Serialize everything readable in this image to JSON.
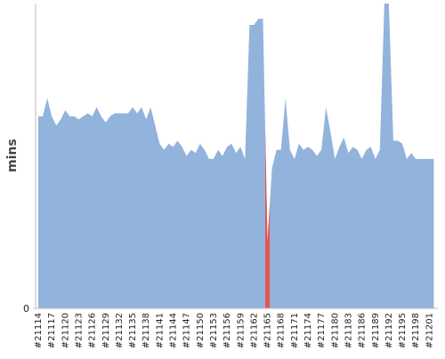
{
  "chart_data": {
    "type": "area",
    "y_label": "mins",
    "categories": [
      "#21114",
      null,
      null,
      "#21117",
      null,
      null,
      "#21120",
      null,
      null,
      "#21123",
      null,
      null,
      "#21126",
      null,
      null,
      "#21129",
      null,
      null,
      "#21132",
      null,
      null,
      "#21135",
      null,
      null,
      "#21138",
      null,
      null,
      "#21141",
      null,
      null,
      "#21144",
      null,
      null,
      "#21147",
      null,
      null,
      "#21150",
      null,
      null,
      "#21153",
      null,
      null,
      "#21156",
      null,
      null,
      "#21159",
      null,
      null,
      "#21162",
      null,
      null,
      "#21165",
      null,
      null,
      "#21168",
      null,
      null,
      "#21171",
      null,
      null,
      "#21174",
      null,
      null,
      "#21177",
      null,
      null,
      "#21180",
      null,
      null,
      "#21183",
      null,
      null,
      "#21186",
      null,
      null,
      "#21189",
      null,
      null,
      "#21192",
      null,
      null,
      "#21195",
      null,
      null,
      "#21198",
      null,
      null,
      "#21201",
      null
    ],
    "values": [
      63,
      63,
      69,
      63,
      60,
      62,
      65,
      63,
      63,
      62,
      63,
      64,
      63,
      66,
      63,
      61,
      63,
      64,
      64,
      64,
      64,
      66,
      64,
      66,
      62,
      66,
      60,
      54,
      52,
      54,
      53,
      55,
      53,
      50,
      52,
      51,
      54,
      52,
      49,
      49,
      52,
      50,
      53,
      54,
      51,
      53,
      49,
      93,
      93,
      95,
      95,
      22,
      46,
      52,
      52,
      69,
      52,
      49,
      54,
      52,
      53,
      52,
      50,
      52,
      66,
      58,
      49,
      53,
      56,
      51,
      53,
      52,
      49,
      52,
      53,
      49,
      52,
      100,
      100,
      55,
      55,
      54,
      49,
      51,
      49,
      49,
      49,
      49,
      49
    ],
    "color": "#92b3dc",
    "highlight_category": "#21165",
    "highlight_color": "#e8554e",
    "ylim": [
      0,
      100
    ],
    "yticks": [
      0
    ]
  }
}
